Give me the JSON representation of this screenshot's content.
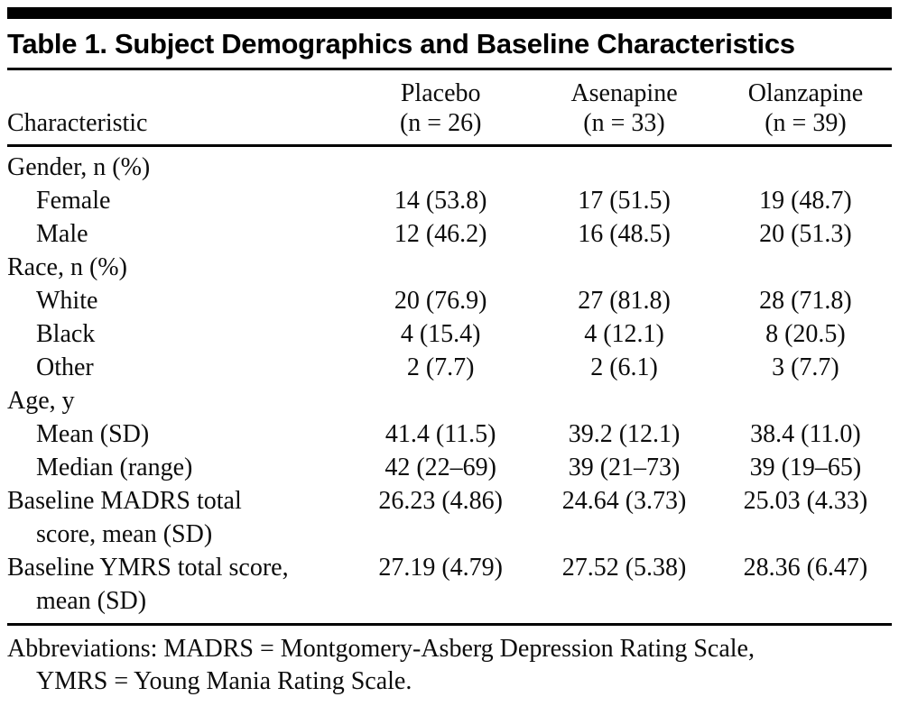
{
  "table": {
    "title": "Table 1. Subject Demographics and Baseline Characteristics",
    "header": {
      "characteristic": "Characteristic",
      "groups": [
        {
          "name": "Placebo",
          "n": "(n = 26)"
        },
        {
          "name": "Asenapine",
          "n": "(n = 33)"
        },
        {
          "name": "Olanzapine",
          "n": "(n = 39)"
        }
      ]
    },
    "rows": [
      {
        "label": "Gender, n (%)"
      },
      {
        "label": "Female",
        "values": [
          "14 (53.8)",
          "17 (51.5)",
          "19 (48.7)"
        ]
      },
      {
        "label": "Male",
        "values": [
          "12 (46.2)",
          "16 (48.5)",
          "20 (51.3)"
        ]
      },
      {
        "label": "Race, n (%)"
      },
      {
        "label": "White",
        "values": [
          "20 (76.9)",
          "27 (81.8)",
          "28 (71.8)"
        ]
      },
      {
        "label": "Black",
        "values": [
          "4 (15.4)",
          "4 (12.1)",
          "8 (20.5)"
        ]
      },
      {
        "label": "Other",
        "values": [
          "2 (7.7)",
          "2 (6.1)",
          "3 (7.7)"
        ]
      },
      {
        "label": "Age, y"
      },
      {
        "label": "Mean (SD)",
        "values": [
          "41.4 (11.5)",
          "39.2 (12.1)",
          "38.4 (11.0)"
        ]
      },
      {
        "label": "Median (range)",
        "values": [
          "42 (22–69)",
          "39 (21–73)",
          "39 (19–65)"
        ]
      },
      {
        "label_lines": [
          "Baseline MADRS total",
          "score, mean (SD)"
        ],
        "values": [
          "26.23 (4.86)",
          "24.64 (3.73)",
          "25.03 (4.33)"
        ]
      },
      {
        "label_lines": [
          "Baseline YMRS total score,",
          "mean (SD)"
        ],
        "values": [
          "27.19 (4.79)",
          "27.52 (5.38)",
          "28.36 (6.47)"
        ]
      }
    ],
    "footnote_lines": [
      "Abbreviations: MADRS = Montgomery-Asberg Depression Rating Scale,",
      "YMRS = Young Mania Rating Scale."
    ]
  }
}
